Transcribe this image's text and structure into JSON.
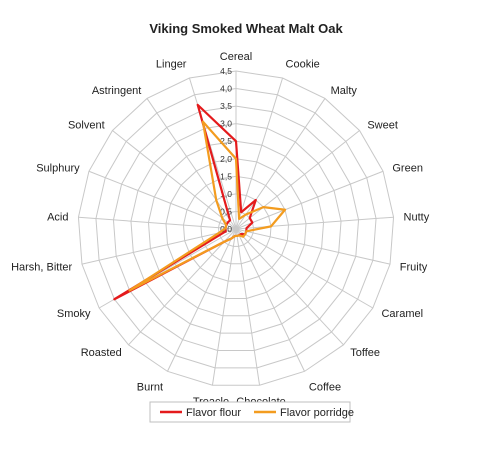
{
  "chart_data": {
    "type": "radar",
    "title": "Viking Smoked Wheat  Malt Oak",
    "categories": [
      "Cereal",
      "Cookie",
      "Malty",
      "Sweet",
      "Green",
      "Nutty",
      "Fruity",
      "Caramel",
      "Toffee",
      "Coffee",
      "Chocolate",
      "Treacle",
      "Burnt",
      "Roasted",
      "Smoky",
      "Harsh, Bitter",
      "Acid",
      "Sulphury",
      "Solvent",
      "Astringent",
      "Linger"
    ],
    "ticks": [
      "0,0",
      "0,5",
      "1,0",
      "1,5",
      "2,0",
      "2,5",
      "3,0",
      "3,5",
      "4,0",
      "4,5"
    ],
    "rmax": 4.5,
    "grid": true,
    "legend_position": "bottom",
    "series": [
      {
        "name": "Flavor flour",
        "color": "#e41a1c",
        "values": [
          2.5,
          0.5,
          1.0,
          0.5,
          0.5,
          0.3,
          0.3,
          0.3,
          0.2,
          0.2,
          0.2,
          0.2,
          0.3,
          0.5,
          4.0,
          0.3,
          0.3,
          0.3,
          0.3,
          0.3,
          3.7
        ]
      },
      {
        "name": "Flavor porridge",
        "color": "#f39c1f",
        "values": [
          2.0,
          0.3,
          0.5,
          1.0,
          1.5,
          1.0,
          0.3,
          0.3,
          0.3,
          0.2,
          0.2,
          0.2,
          0.3,
          0.5,
          3.5,
          0.5,
          0.3,
          0.3,
          0.5,
          1.0,
          3.2
        ]
      }
    ]
  }
}
